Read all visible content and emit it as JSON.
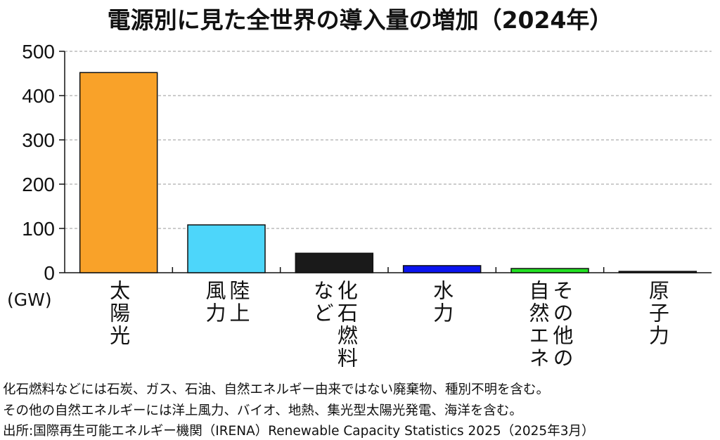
{
  "chart_data": {
    "type": "bar",
    "title": "電源別に見た全世界の導入量の増加（2024年）",
    "ylabel": "(GW)",
    "xlabel": "",
    "ylim": [
      0,
      500
    ],
    "yticks": [
      "0",
      "100",
      "200",
      "300",
      "400",
      "500"
    ],
    "grid": true,
    "categories": [
      "太陽光",
      "陸上\n風力",
      "化石燃料\nなど",
      "水力",
      "その他の\n自然エネ",
      "原子力"
    ],
    "values": [
      452,
      108,
      44,
      16,
      9.5,
      3
    ],
    "colors": [
      "#F9A229",
      "#4DD6FA",
      "#1A1A1A",
      "#0A14F0",
      "#22E022",
      "#1A1A1A"
    ]
  },
  "notes": [
    "化石燃料などには石炭、ガス、石油、自然エネルギー由来ではない廃棄物、種別不明を含む。",
    "その他の自然エネルギーには洋上風力、バイオ、地熱、集光型太陽光発電、海洋を含む。",
    "出所:国際再生可能エネルギー機関（IRENA）Renewable Capacity Statistics 2025（2025年3月）"
  ]
}
